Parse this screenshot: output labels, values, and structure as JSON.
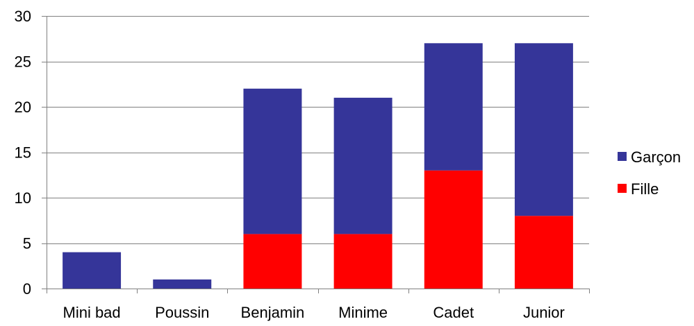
{
  "chart_data": {
    "type": "bar",
    "stacked": true,
    "categories": [
      "Mini bad",
      "Poussin",
      "Benjamin",
      "Minime",
      "Cadet",
      "Junior"
    ],
    "series": [
      {
        "name": "Fille",
        "color": "#ff0000",
        "values": [
          0,
          0,
          6,
          6,
          13,
          8
        ]
      },
      {
        "name": "Garçon",
        "color": "#353599",
        "values": [
          4,
          1,
          16,
          15,
          14,
          19
        ]
      }
    ],
    "title": "",
    "xlabel": "",
    "ylabel": "",
    "ylim": [
      0,
      30
    ],
    "yticks": [
      "0",
      "5",
      "10",
      "15",
      "20",
      "25",
      "30"
    ],
    "grid": true,
    "legend_position": "right",
    "legend_order": [
      "Garçon",
      "Fille"
    ]
  }
}
